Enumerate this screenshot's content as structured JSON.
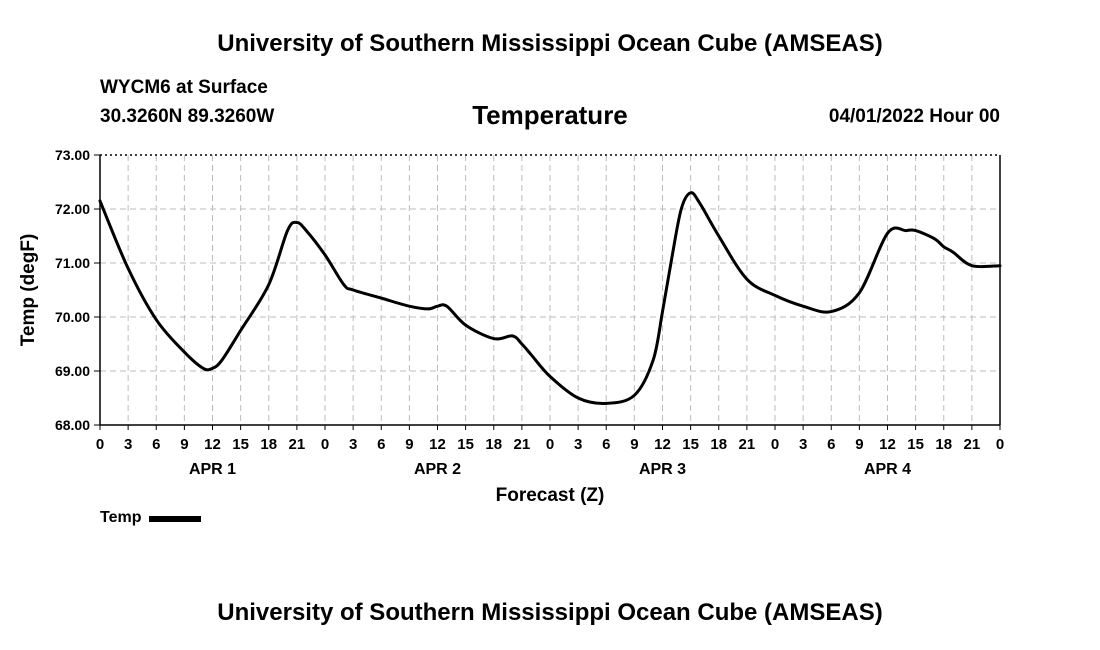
{
  "header": {
    "title": "University of Southern Mississippi Ocean Cube (AMSEAS)",
    "station": "WYCM6 at Surface",
    "coords": "30.3260N  89.3260W",
    "datetime": "04/01/2022 Hour 00"
  },
  "footer": {
    "title": "University of Southern Mississippi Ocean Cube (AMSEAS)"
  },
  "chart_data": {
    "type": "line",
    "title": "Temperature",
    "xlabel": "Forecast (Z)",
    "ylabel": "Temp (degF)",
    "ylim": [
      68,
      73
    ],
    "xlim": [
      0,
      96
    ],
    "yticks": [
      "68.00",
      "69.00",
      "70.00",
      "71.00",
      "72.00",
      "73.00"
    ],
    "xtick_labels": [
      "0",
      "3",
      "6",
      "9",
      "12",
      "15",
      "18",
      "21",
      "0",
      "3",
      "6",
      "9",
      "12",
      "15",
      "18",
      "21",
      "0",
      "3",
      "6",
      "9",
      "12",
      "15",
      "18",
      "21",
      "0",
      "3",
      "6",
      "9",
      "12",
      "15",
      "18",
      "21",
      "0"
    ],
    "day_labels": [
      {
        "label": "APR 1",
        "hour": 12
      },
      {
        "label": "APR 2",
        "hour": 36
      },
      {
        "label": "APR 3",
        "hour": 60
      },
      {
        "label": "APR 4",
        "hour": 84
      }
    ],
    "grid": true,
    "legend": "bottom-left",
    "series": [
      {
        "name": "Temp",
        "color": "#000000",
        "x": [
          0,
          3,
          6,
          9,
          11,
          12,
          13,
          15,
          18,
          20,
          21,
          22,
          24,
          26,
          27,
          30,
          33,
          35,
          36,
          37,
          39,
          42,
          44,
          45,
          46,
          48,
          51,
          54,
          57,
          59,
          60,
          61,
          62,
          63,
          64,
          66,
          69,
          72,
          75,
          78,
          81,
          84,
          86,
          87,
          89,
          90,
          91,
          93,
          96
        ],
        "values": [
          72.15,
          70.9,
          69.95,
          69.35,
          69.05,
          69.05,
          69.2,
          69.75,
          70.6,
          71.6,
          71.75,
          71.6,
          71.15,
          70.6,
          70.5,
          70.35,
          70.2,
          70.15,
          70.2,
          70.2,
          69.85,
          69.6,
          69.65,
          69.5,
          69.3,
          68.9,
          68.5,
          68.4,
          68.55,
          69.2,
          70.1,
          71.1,
          72.0,
          72.3,
          72.1,
          71.5,
          70.7,
          70.4,
          70.2,
          70.1,
          70.45,
          71.55,
          71.6,
          71.6,
          71.45,
          71.3,
          71.2,
          70.95,
          70.95
        ]
      }
    ]
  }
}
